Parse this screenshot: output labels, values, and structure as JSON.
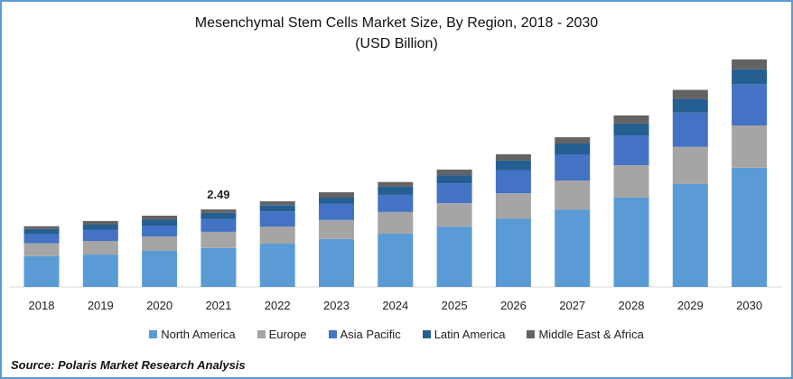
{
  "chart_data": {
    "type": "bar",
    "stacked": true,
    "title": "Mesenchymal Stem Cells Market Size, By Region, 2018 - 2030",
    "subtitle": "(USD Billion)",
    "xlabel": "",
    "ylabel": "",
    "ylim": [
      0,
      7.5
    ],
    "grid": false,
    "legend_position": "bottom",
    "categories": [
      "2018",
      "2019",
      "2020",
      "2021",
      "2022",
      "2023",
      "2024",
      "2025",
      "2026",
      "2027",
      "2028",
      "2029",
      "2030"
    ],
    "series": [
      {
        "name": "North America",
        "color": "#5b9bd5",
        "values": [
          0.99,
          1.04,
          1.16,
          1.25,
          1.39,
          1.54,
          1.71,
          1.94,
          2.2,
          2.49,
          2.87,
          3.31,
          3.83
        ]
      },
      {
        "name": "Europe",
        "color": "#a5a5a5",
        "values": [
          0.41,
          0.44,
          0.46,
          0.52,
          0.55,
          0.61,
          0.7,
          0.75,
          0.81,
          0.93,
          1.04,
          1.19,
          1.36
        ]
      },
      {
        "name": "Asia Pacific",
        "color": "#4472c4",
        "values": [
          0.29,
          0.35,
          0.35,
          0.41,
          0.49,
          0.52,
          0.55,
          0.64,
          0.73,
          0.84,
          0.96,
          1.1,
          1.31
        ]
      },
      {
        "name": "Latin America",
        "color": "#255e91",
        "values": [
          0.17,
          0.17,
          0.2,
          0.2,
          0.2,
          0.2,
          0.26,
          0.26,
          0.32,
          0.35,
          0.38,
          0.44,
          0.49
        ]
      },
      {
        "name": "Middle East & Africa",
        "color": "#636363",
        "values": [
          0.09,
          0.12,
          0.12,
          0.11,
          0.12,
          0.17,
          0.15,
          0.18,
          0.2,
          0.2,
          0.26,
          0.29,
          0.32
        ]
      }
    ],
    "annotations": [
      {
        "category": "2021",
        "text": "2.49"
      }
    ]
  },
  "source": "Source: Polaris  Market Research Analysis"
}
